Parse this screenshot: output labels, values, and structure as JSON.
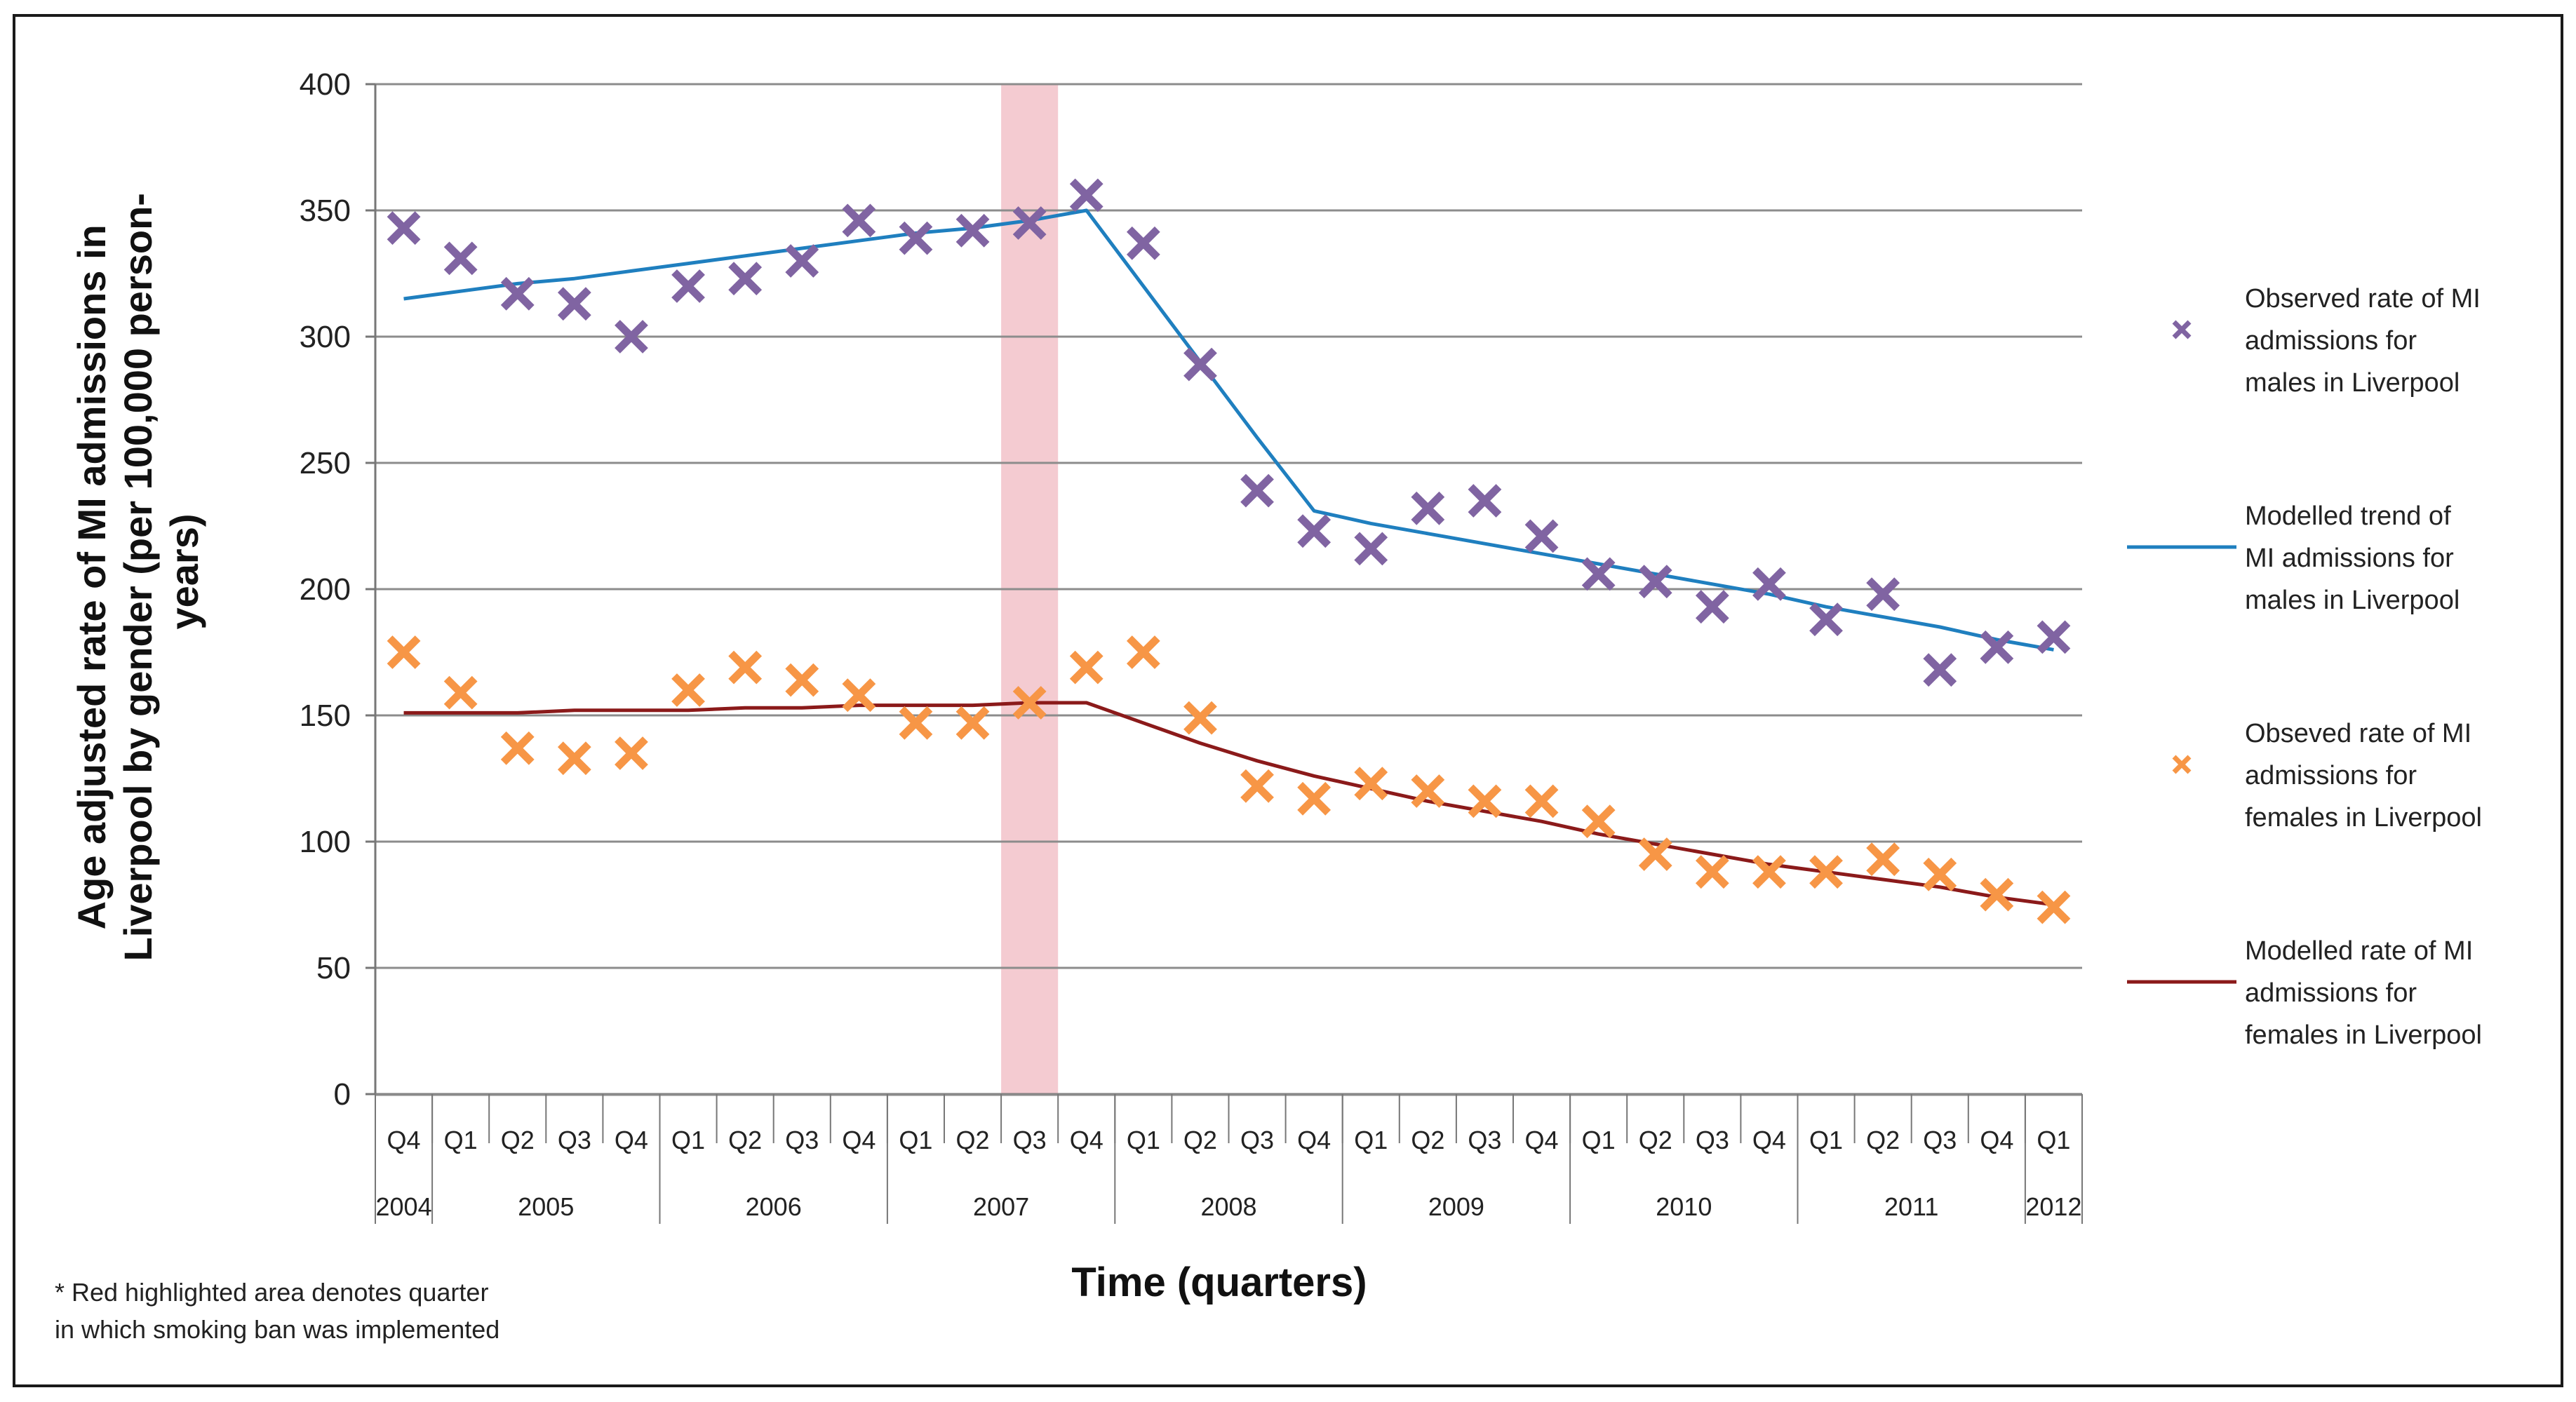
{
  "chart_data": {
    "type": "line",
    "title": "",
    "ylabel": "Age adjusted rate of MI admissions in Liverpool by gender (per 100,000 person-years)",
    "ylabel_lines": [
      "Age adjusted rate of MI admissions in",
      "Liverpool by gender (per 100,000 person-",
      "years)"
    ],
    "xlabel": "Time (quarters)",
    "ylim": [
      0,
      400
    ],
    "yticks": [
      0,
      50,
      100,
      150,
      200,
      250,
      300,
      350,
      400
    ],
    "grid": true,
    "quarters": [
      "Q4",
      "Q1",
      "Q2",
      "Q3",
      "Q4",
      "Q1",
      "Q2",
      "Q3",
      "Q4",
      "Q1",
      "Q2",
      "Q3",
      "Q4",
      "Q1",
      "Q2",
      "Q3",
      "Q4",
      "Q1",
      "Q2",
      "Q3",
      "Q4",
      "Q1",
      "Q2",
      "Q3",
      "Q4",
      "Q1",
      "Q2",
      "Q3",
      "Q4",
      "Q1"
    ],
    "years": [
      {
        "label": "2004",
        "start": 0,
        "end": 0
      },
      {
        "label": "2005",
        "start": 1,
        "end": 4
      },
      {
        "label": "2006",
        "start": 5,
        "end": 8
      },
      {
        "label": "2007",
        "start": 9,
        "end": 12
      },
      {
        "label": "2008",
        "start": 13,
        "end": 16
      },
      {
        "label": "2009",
        "start": 17,
        "end": 20
      },
      {
        "label": "2010",
        "start": 21,
        "end": 24
      },
      {
        "label": "2011",
        "start": 25,
        "end": 28
      },
      {
        "label": "2012",
        "start": 29,
        "end": 29
      }
    ],
    "highlight_index": 11,
    "series": [
      {
        "name": "Observed rate of MI admissions for males in Liverpool",
        "kind": "scatter",
        "color": "#8064a2",
        "values": [
          343,
          331,
          317,
          313,
          300,
          320,
          323,
          330,
          346,
          339,
          342,
          345,
          356,
          337,
          289,
          239,
          223,
          216,
          232,
          235,
          221,
          206,
          203,
          193,
          202,
          188,
          198,
          168,
          177,
          181
        ]
      },
      {
        "name": "Modelled trend of MI admissions for males in Liverpool",
        "kind": "line",
        "color": "#1f7fbf",
        "values": [
          315,
          318,
          321,
          323,
          326,
          329,
          332,
          335,
          338,
          341,
          343,
          346,
          350,
          320,
          290,
          260,
          231,
          226,
          222,
          218,
          214,
          210,
          206,
          202,
          198,
          193,
          189,
          185,
          180,
          176
        ]
      },
      {
        "name": "Obseved rate of MI admissions for females in Liverpool",
        "kind": "scatter",
        "color": "#f79646",
        "values": [
          175,
          159,
          137,
          133,
          135,
          160,
          169,
          164,
          158,
          147,
          147,
          155,
          169,
          175,
          149,
          122,
          117,
          123,
          120,
          116,
          116,
          108,
          95,
          88,
          88,
          88,
          93,
          87,
          79,
          74
        ]
      },
      {
        "name": "Modelled rate of MI admissions for females in Liverpool",
        "kind": "line",
        "color": "#8b1a1a",
        "values": [
          151,
          151,
          151,
          152,
          152,
          152,
          153,
          153,
          154,
          154,
          154,
          155,
          155,
          147,
          139,
          132,
          126,
          121,
          116,
          112,
          108,
          103,
          99,
          95,
          91,
          88,
          85,
          82,
          78,
          75
        ]
      }
    ],
    "legend": [
      {
        "label_lines": [
          "Observed rate of MI",
          "admissions for",
          "males in Liverpool"
        ],
        "marker": "x",
        "color": "#8064a2"
      },
      {
        "label_lines": [
          "Modelled trend of",
          "MI admissions for",
          "males in Liverpool"
        ],
        "marker": "line",
        "color": "#1f7fbf"
      },
      {
        "label_lines": [
          "Obseved rate of MI",
          "admissions for",
          "females in Liverpool"
        ],
        "marker": "x",
        "color": "#f79646"
      },
      {
        "label_lines": [
          "Modelled rate of MI",
          "admissions for",
          "females in Liverpool"
        ],
        "marker": "line",
        "color": "#8b1a1a"
      }
    ],
    "legend_position": "right",
    "highlight_color": "#f2c2c9"
  },
  "footnote": {
    "line1": "* Red highlighted area denotes quarter",
    "line2": "in which smoking ban was implemented"
  },
  "colors": {
    "grid": "#8c8c8c",
    "axis": "#777777"
  }
}
